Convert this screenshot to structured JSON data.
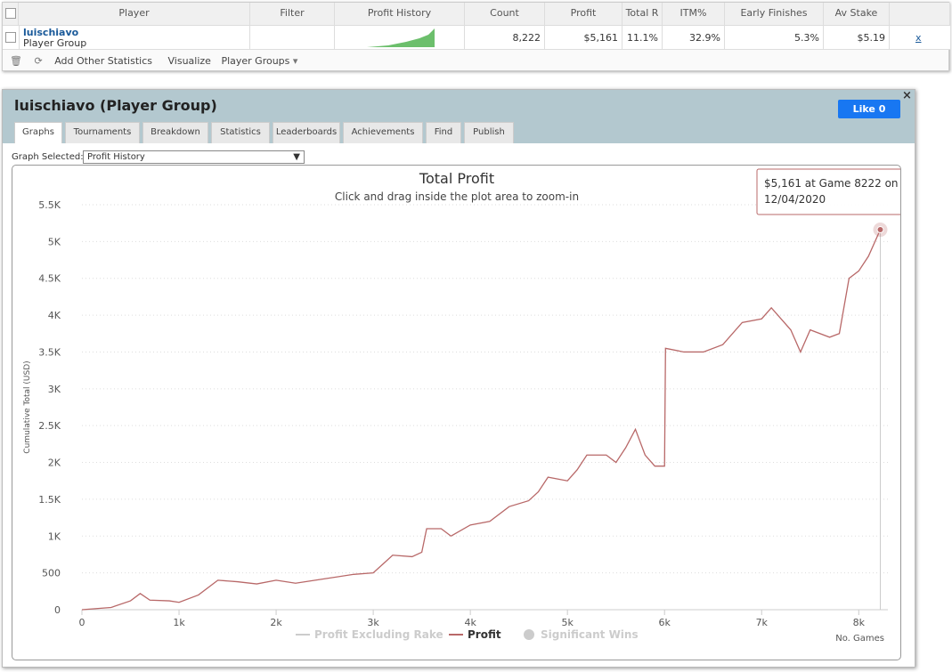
{
  "table": {
    "headers": [
      "Player",
      "Filter",
      "Profit History",
      "Count",
      "Profit",
      "Total R",
      "ITM%",
      "Early Finishes",
      "Av Stake"
    ],
    "row": {
      "name": "luischiavo",
      "group": "Player Group",
      "cells": [
        "8,222",
        "$5,161",
        "11.1%",
        "32.9%",
        "5.3%",
        "$5.19"
      ],
      "remove": "x"
    },
    "toolbar": [
      "Add Other Statistics",
      "Visualize",
      "Player Groups"
    ]
  },
  "panel": {
    "title": "luischiavo (Player Group)",
    "like": "Like 0",
    "close": "×",
    "tabs": [
      "Graphs",
      "Tournaments",
      "Breakdown",
      "Statistics",
      "Leaderboards",
      "Achievements",
      "Find",
      "Publish"
    ],
    "graph_label": "Graph Selected:",
    "graph_selected": "Profit History"
  },
  "chart_data": {
    "type": "line",
    "title": "Total Profit",
    "subtitle": "Click and drag inside the plot area to zoom-in",
    "y_label": "Cumulative Total (USD)",
    "x_label": "No. Games",
    "x": [
      0,
      300,
      500,
      600,
      700,
      900,
      1000,
      1200,
      1400,
      1600,
      1800,
      2000,
      2200,
      2500,
      2800,
      3000,
      3100,
      3200,
      3400,
      3500,
      3550,
      3700,
      3800,
      4000,
      4200,
      4400,
      4600,
      4700,
      4800,
      5000,
      5100,
      5200,
      5400,
      5500,
      5600,
      5700,
      5800,
      5900,
      6000,
      6010,
      6200,
      6400,
      6600,
      6800,
      7000,
      7100,
      7300,
      7400,
      7500,
      7700,
      7800,
      7900,
      8000,
      8100,
      8222
    ],
    "series": [
      {
        "name": "Profit",
        "color": "#b86868",
        "values": [
          0,
          30,
          120,
          220,
          130,
          120,
          100,
          200,
          400,
          380,
          350,
          400,
          360,
          420,
          480,
          500,
          620,
          740,
          720,
          780,
          1100,
          1100,
          1000,
          1150,
          1200,
          1400,
          1480,
          1600,
          1800,
          1750,
          1900,
          2100,
          2100,
          2000,
          2200,
          2450,
          2100,
          1950,
          1950,
          3550,
          3500,
          3500,
          3600,
          3900,
          3950,
          4100,
          3800,
          3500,
          3800,
          3700,
          3750,
          4500,
          4600,
          4800,
          5161
        ]
      }
    ],
    "hidden_series": [
      {
        "name": "Profit Excluding Rake",
        "color": "#cccccc"
      },
      {
        "name": "Significant Wins",
        "color": "#cccccc"
      }
    ],
    "tooltip": [
      "$5,161 at Game 8222 on",
      "12/04/2020"
    ],
    "xlim": [
      0,
      8300
    ],
    "ylim": [
      0,
      5500
    ],
    "xticks": [
      0,
      {
        "value": 1000,
        "label": "1k"
      },
      {
        "value": 2000,
        "label": "2k"
      },
      {
        "value": 3000,
        "label": "3k"
      },
      {
        "value": 4000,
        "label": "4k"
      },
      {
        "value": 5000,
        "label": "5k"
      },
      {
        "value": 6000,
        "label": "6k"
      },
      {
        "value": 7000,
        "label": "7k"
      },
      {
        "value": 8000,
        "label": "8k"
      }
    ],
    "yticks": [
      0,
      500,
      {
        "value": 1000,
        "label": "1K"
      },
      {
        "value": 1500,
        "label": "1.5K"
      },
      {
        "value": 2000,
        "label": "2K"
      },
      {
        "value": 2500,
        "label": "2.5K"
      },
      {
        "value": 3000,
        "label": "3K"
      },
      {
        "value": 3500,
        "label": "3.5K"
      },
      {
        "value": 4000,
        "label": "4K"
      },
      {
        "value": 4500,
        "label": "4.5K"
      },
      {
        "value": 5000,
        "label": "5K"
      },
      {
        "value": 5500,
        "label": "5.5K"
      }
    ],
    "grid": true
  }
}
